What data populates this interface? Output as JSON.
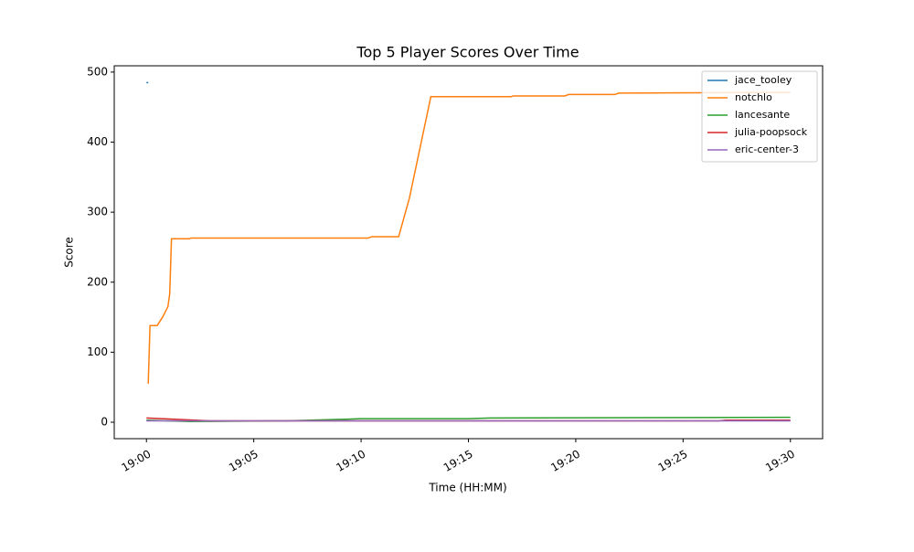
{
  "chart_data": {
    "type": "line",
    "title": "Top 5 Player Scores Over Time",
    "x_label": "Time (HH:MM)",
    "y_label": "Score",
    "xlim": [
      "18:58:30",
      "19:31:30"
    ],
    "xticks": [
      "19:00",
      "19:05",
      "19:10",
      "19:15",
      "19:20",
      "19:25",
      "19:30"
    ],
    "ylim": [
      -23.5,
      509
    ],
    "yticks": [
      0,
      100,
      200,
      300,
      400,
      500
    ],
    "legend": "upper right",
    "series": [
      {
        "name": "jace_tooley",
        "color": "#1f77b4",
        "x": [
          "19:00:00",
          "19:00:05"
        ],
        "values": [
          485,
          485
        ]
      },
      {
        "name": "notchlo",
        "color": "#ff7f0e",
        "x": [
          "19:00:05",
          "19:00:10",
          "19:00:30",
          "19:00:45",
          "19:01:00",
          "19:01:05",
          "19:01:10",
          "19:02:00",
          "19:02:05",
          "19:10:20",
          "19:10:30",
          "19:11:45",
          "19:12:15",
          "19:13:15",
          "19:17:00",
          "19:17:05",
          "19:19:30",
          "19:19:40",
          "19:21:50",
          "19:22:00",
          "19:30:00"
        ],
        "values": [
          55,
          138,
          138,
          150,
          165,
          183,
          262,
          262,
          263,
          263,
          265,
          265,
          320,
          465,
          465,
          466,
          466,
          468,
          468,
          470,
          471
        ]
      },
      {
        "name": "lancesante",
        "color": "#2ca02c",
        "x": [
          "19:00:00",
          "19:02:00",
          "19:06:30",
          "19:09:00",
          "19:10:00",
          "19:15:00",
          "19:16:00",
          "19:30:00"
        ],
        "values": [
          3,
          1,
          2,
          4,
          5,
          5,
          6,
          7
        ]
      },
      {
        "name": "julia-poopsock",
        "color": "#d62728",
        "x": [
          "19:00:00",
          "19:03:00",
          "19:26:40",
          "19:27:00",
          "19:30:00"
        ],
        "values": [
          6,
          2,
          2,
          3,
          3
        ]
      },
      {
        "name": "eric-center-3",
        "color": "#9467bd",
        "x": [
          "19:00:00",
          "19:30:00"
        ],
        "values": [
          2,
          2
        ]
      }
    ]
  }
}
